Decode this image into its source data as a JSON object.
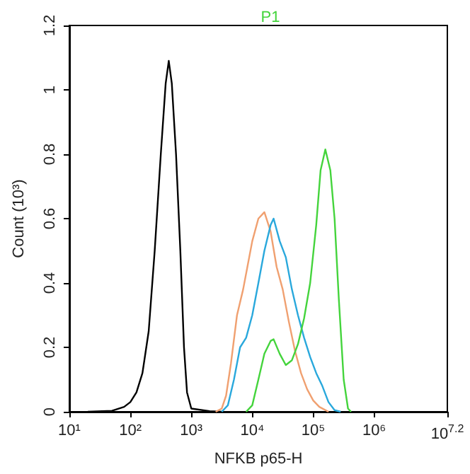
{
  "chart_data": {
    "type": "line",
    "title": "P1",
    "xlabel": "NFKB p65-H",
    "ylabel": "Count (10³)",
    "log": "x",
    "xlim": [
      10,
      15848932
    ],
    "xticks": [
      {
        "value": 10,
        "label": "10¹"
      },
      {
        "value": 100,
        "label": "10²"
      },
      {
        "value": 1000,
        "label": "10³"
      },
      {
        "value": 10000,
        "label": "10⁴"
      },
      {
        "value": 100000,
        "label": "10⁵"
      },
      {
        "value": 1000000,
        "label": "10⁶"
      },
      {
        "value": 15848932,
        "label": "10$^{7.2}$"
      }
    ],
    "ylim": [
      0,
      1.2
    ],
    "yticks": [
      0,
      0.2,
      0.4,
      0.6,
      0.8,
      1,
      1.2
    ],
    "grid": false,
    "marker": "none",
    "line_style": "solid",
    "series": [
      {
        "color": "#000000",
        "x": [
          20,
          50,
          79,
          100,
          126,
          158,
          200,
          251,
          316,
          380,
          427,
          479,
          562,
          661,
          759,
          851,
          1000,
          2000,
          3162
        ],
        "values": [
          0,
          0.003,
          0.015,
          0.03,
          0.06,
          0.12,
          0.25,
          0.5,
          0.8,
          1.02,
          1.09,
          1.02,
          0.8,
          0.5,
          0.2,
          0.06,
          0.01,
          0.002,
          0
        ]
      },
      {
        "color": "#f0a070",
        "x": [
          2510,
          3160,
          3720,
          4470,
          5620,
          7080,
          8320,
          10000,
          12600,
          15800,
          20000,
          25100,
          31600,
          39800,
          50100,
          63100,
          79400,
          100000,
          126000,
          178000
        ],
        "values": [
          0,
          0.01,
          0.05,
          0.15,
          0.3,
          0.38,
          0.45,
          0.53,
          0.6,
          0.62,
          0.56,
          0.45,
          0.38,
          0.28,
          0.19,
          0.12,
          0.07,
          0.035,
          0.015,
          0
        ]
      },
      {
        "color": "#29a8dc",
        "x": [
          3160,
          3980,
          5010,
          6310,
          7940,
          10000,
          12600,
          15800,
          20000,
          22400,
          28200,
          35500,
          44700,
          56200,
          70800,
          89100,
          112000,
          141000,
          178000,
          224000,
          282000
        ],
        "values": [
          0,
          0.02,
          0.1,
          0.2,
          0.23,
          0.3,
          0.4,
          0.5,
          0.58,
          0.6,
          0.53,
          0.48,
          0.38,
          0.3,
          0.23,
          0.17,
          0.12,
          0.08,
          0.03,
          0.005,
          0
        ]
      },
      {
        "color": "#44d43c",
        "x": [
          7940,
          10000,
          12600,
          15800,
          20000,
          22400,
          28200,
          35500,
          44700,
          56200,
          70800,
          89100,
          112000,
          132000,
          158000,
          191000,
          224000,
          263000,
          316000,
          372000,
          417000
        ],
        "values": [
          0,
          0.02,
          0.1,
          0.18,
          0.22,
          0.225,
          0.18,
          0.145,
          0.16,
          0.21,
          0.29,
          0.4,
          0.58,
          0.75,
          0.815,
          0.75,
          0.6,
          0.35,
          0.1,
          0.01,
          0
        ]
      }
    ]
  }
}
